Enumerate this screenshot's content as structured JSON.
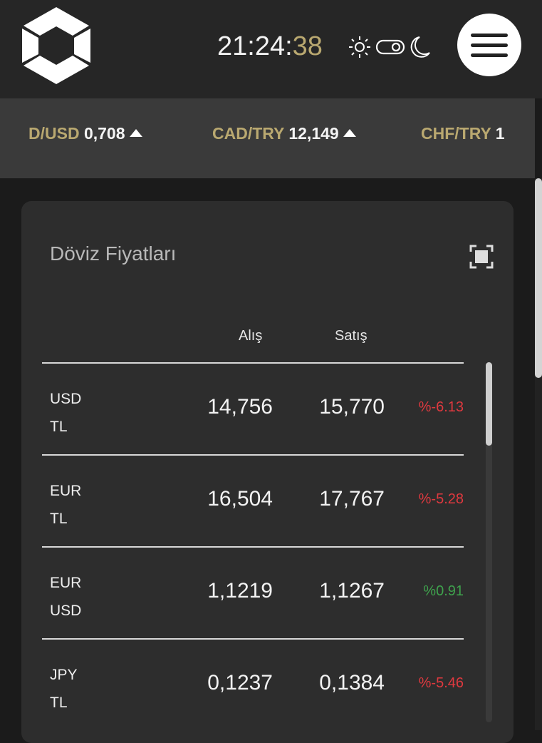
{
  "header": {
    "clock_hm": "21:24:",
    "clock_s": "38"
  },
  "ticker": [
    {
      "pair": "D/USD",
      "value": "0,708",
      "trend": "up"
    },
    {
      "pair": "CAD/TRY",
      "value": "12,149",
      "trend": "up"
    },
    {
      "pair": "CHF/TRY",
      "value": "1",
      "trend": ""
    }
  ],
  "card": {
    "title": "Döviz Fiyatları",
    "col_buy": "Alış",
    "col_sell": "Satış",
    "rows": [
      {
        "base": "USD",
        "quote": "TL",
        "buy": "14,756",
        "sell": "15,770",
        "change": "%-6.13",
        "dir": "down"
      },
      {
        "base": "EUR",
        "quote": "TL",
        "buy": "16,504",
        "sell": "17,767",
        "change": "%-5.28",
        "dir": "down"
      },
      {
        "base": "EUR",
        "quote": "USD",
        "buy": "1,1219",
        "sell": "1,1267",
        "change": "%0.91",
        "dir": "up"
      },
      {
        "base": "JPY",
        "quote": "TL",
        "buy": "0,1237",
        "sell": "0,1384",
        "change": "%-5.46",
        "dir": "down"
      }
    ]
  },
  "colors": {
    "accent": "#b9a870",
    "down": "#e0393f",
    "up": "#3fa34d"
  }
}
